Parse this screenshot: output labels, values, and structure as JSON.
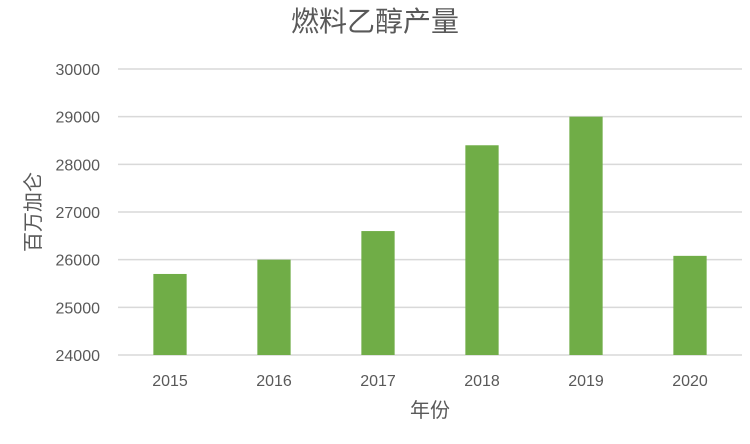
{
  "chart_data": {
    "type": "bar",
    "title": "燃料乙醇产量",
    "xlabel": "年份",
    "ylabel": "百万加仑",
    "categories": [
      "2015",
      "2016",
      "2017",
      "2018",
      "2019",
      "2020"
    ],
    "values": [
      25700,
      26000,
      26600,
      28400,
      29000,
      26080
    ],
    "ylim": [
      24000,
      30000
    ],
    "yticks": [
      24000,
      25000,
      26000,
      27000,
      28000,
      29000,
      30000
    ],
    "grid": true,
    "legend": "none",
    "colors": {
      "bar": "#70AD47",
      "grid": "#D9D9D9",
      "text": "#595959"
    }
  }
}
